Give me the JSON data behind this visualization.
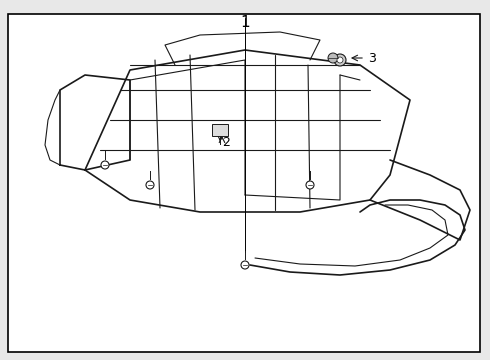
{
  "title": "",
  "background_color": "#e8e8e8",
  "border_color": "#000000",
  "line_color": "#1a1a1a",
  "label_1": "1",
  "label_2": "2",
  "label_3": "3",
  "fig_width": 4.9,
  "fig_height": 3.6,
  "dpi": 100
}
